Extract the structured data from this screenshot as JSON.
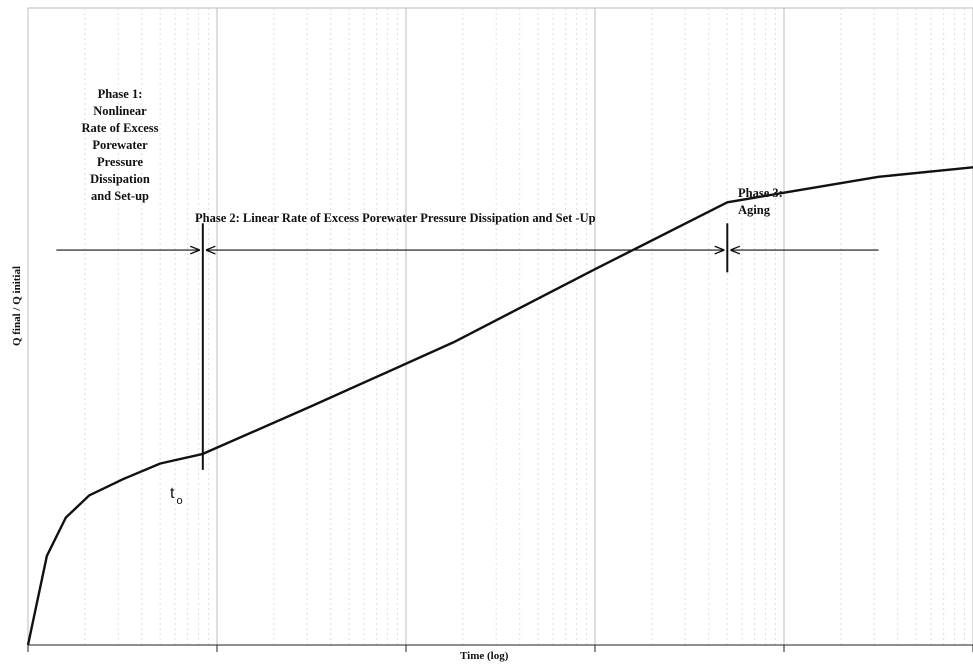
{
  "chart_data": {
    "type": "line",
    "xlabel": "Time (log)",
    "ylabel": "Q final / Q initial",
    "x_scale": "log",
    "x_decades": 5,
    "grid": "vertical minor (dotted) and major (solid) per log decade",
    "series": [
      {
        "values_note": "normalized (0=bottom,1=top of plot); curve digitized from image",
        "x": [
          0.0,
          0.02,
          0.04,
          0.065,
          0.1,
          0.14,
          0.185,
          0.3,
          0.45,
          0.6,
          0.74,
          0.8,
          0.9,
          1.0
        ],
        "y": [
          0.0,
          0.14,
          0.2,
          0.235,
          0.26,
          0.285,
          0.3,
          0.375,
          0.475,
          0.59,
          0.695,
          0.71,
          0.735,
          0.75
        ]
      }
    ],
    "t0_x": 0.185,
    "phase2_end_x": 0.74,
    "annotations": {
      "phase1": "Phase 1:\nNonlinear\nRate of Excess\nPorewater\nPressure\nDissipation\nand Set-up",
      "phase2": "Phase 2:  Linear Rate of Excess Porewater Pressure Dissipation and Set -Up",
      "phase3": "Phase 3:\nAging",
      "t0_main": "t",
      "t0_sub": "o"
    }
  }
}
